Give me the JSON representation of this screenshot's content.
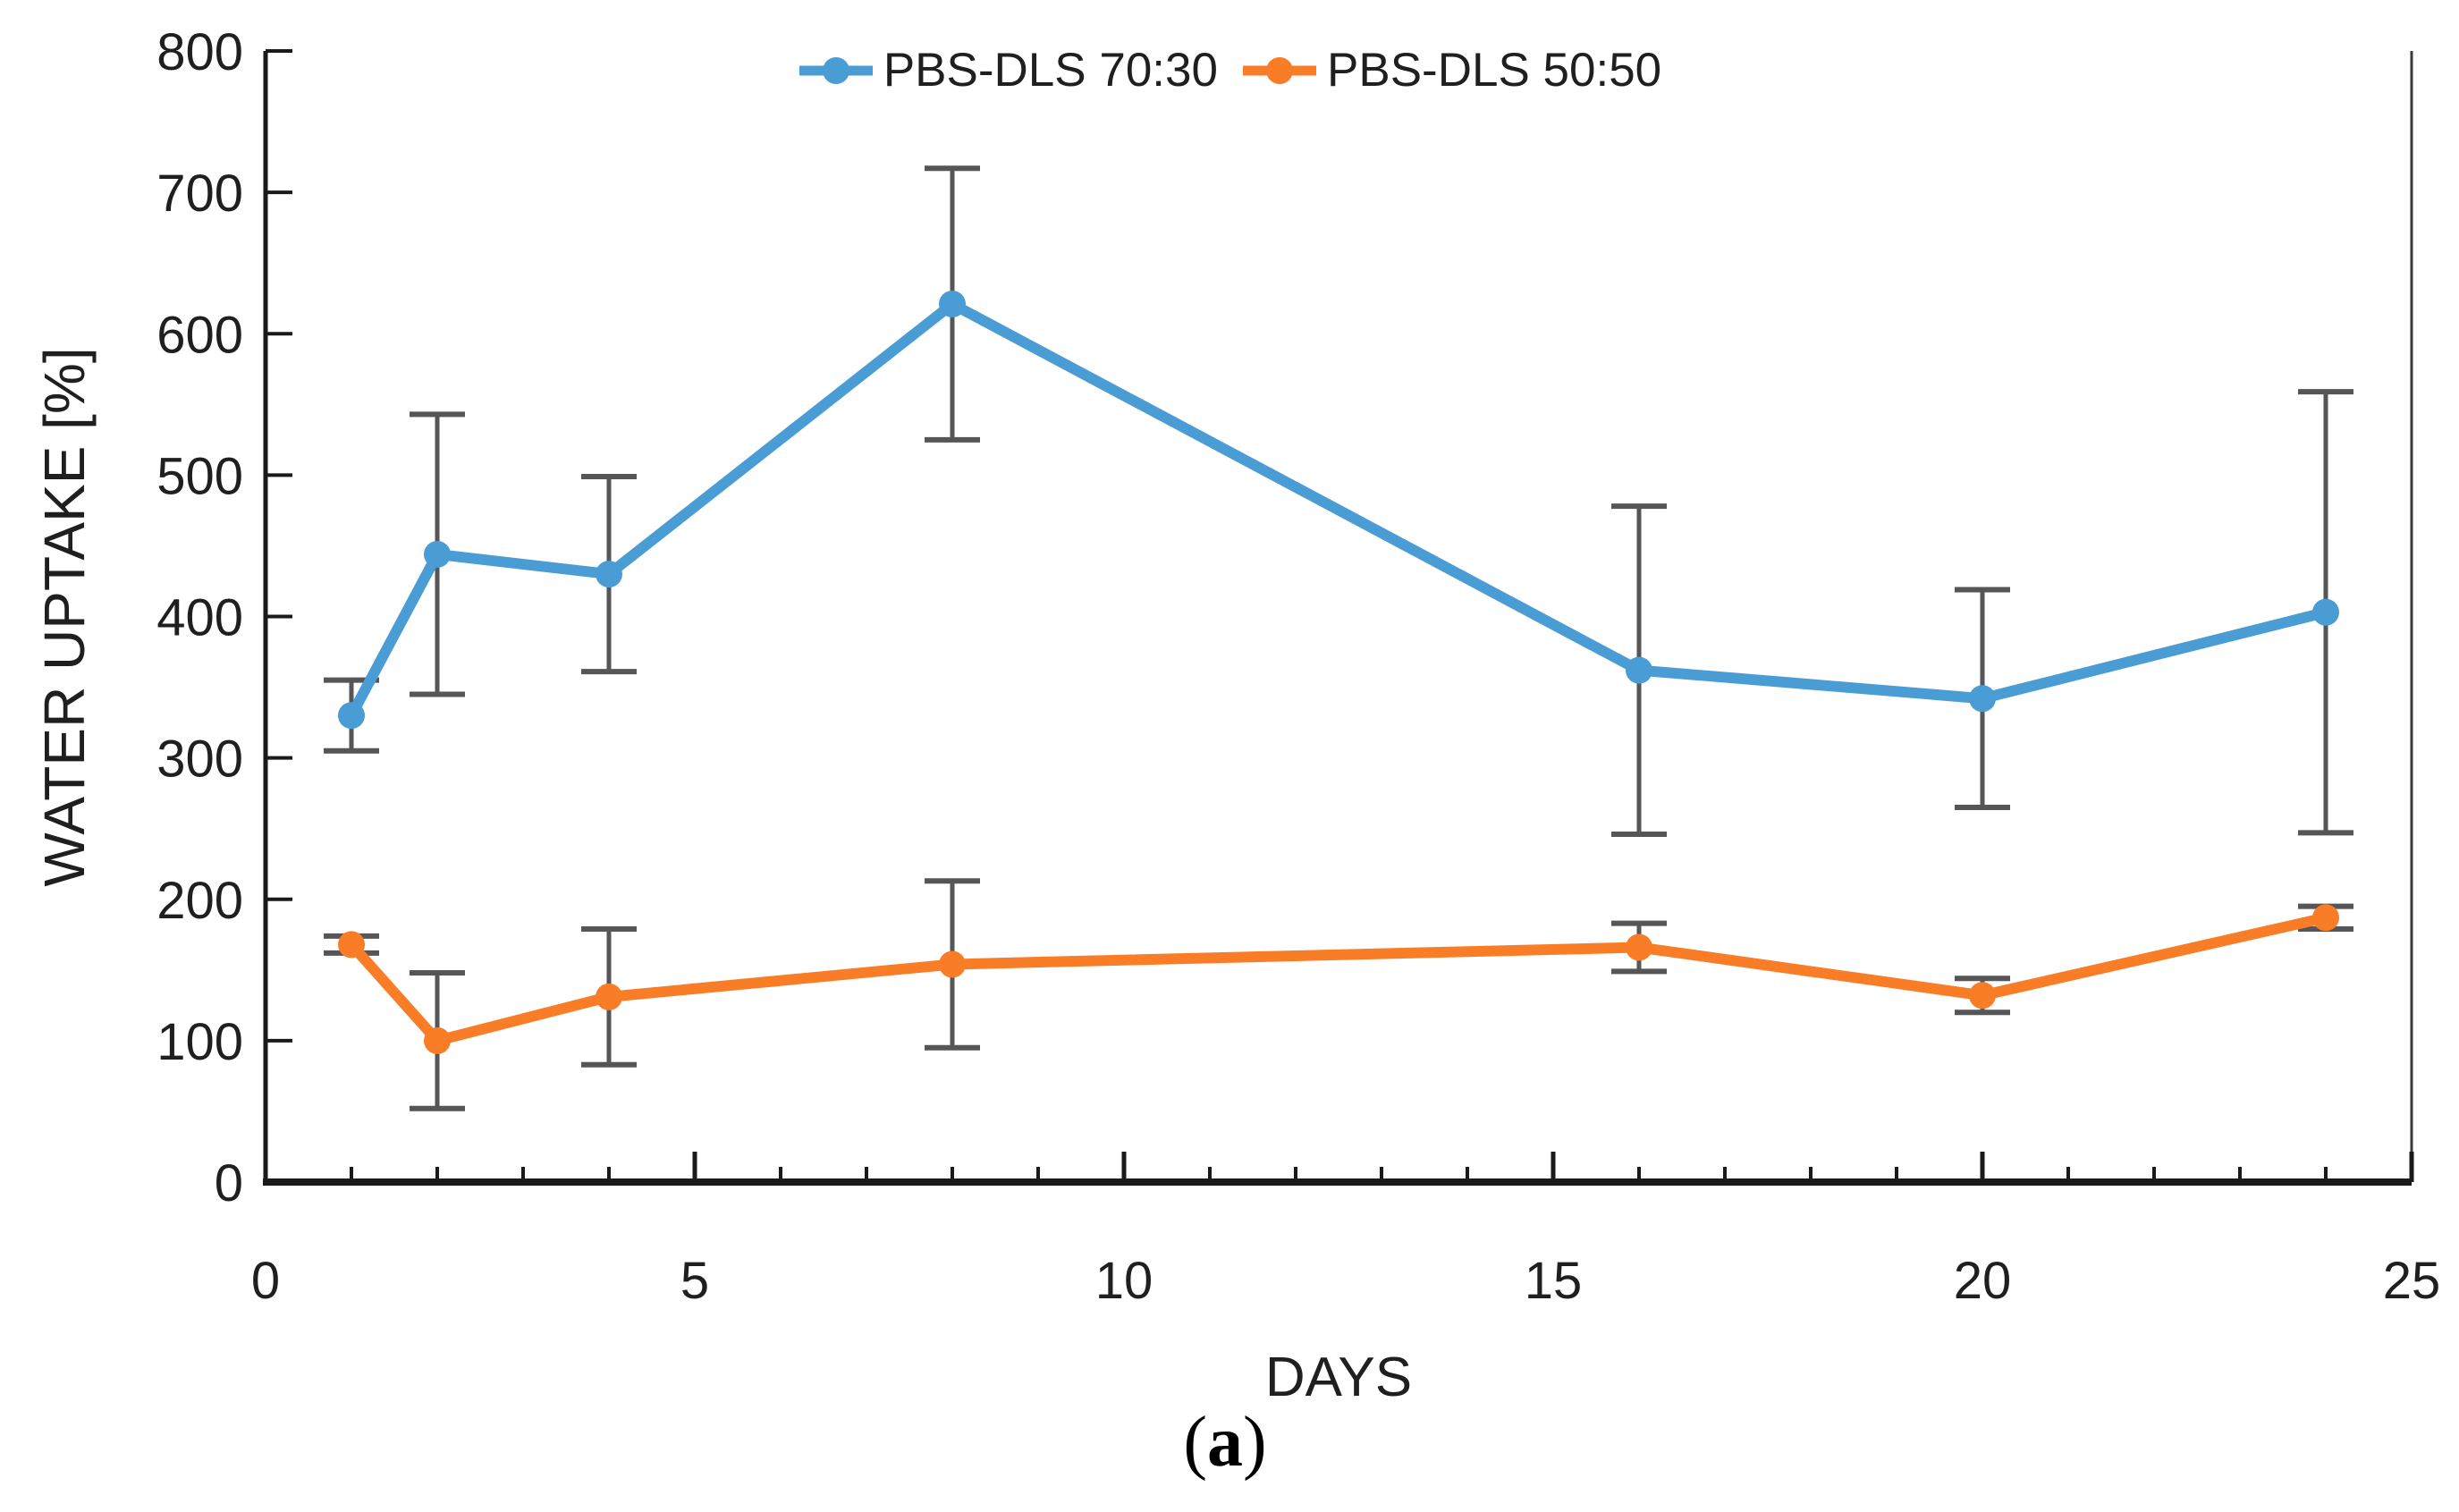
{
  "figure": {
    "background": "#ffffff",
    "caption": {
      "prefix": "(",
      "letter": "a",
      "suffix": ")"
    }
  },
  "chart_data": {
    "type": "line",
    "title": "",
    "xlabel": "DAYS",
    "ylabel": "WATER UPTAKE [%]",
    "xlim": [
      0,
      25
    ],
    "ylim": [
      0,
      800
    ],
    "xticks_major": [
      0,
      5,
      10,
      15,
      20,
      25
    ],
    "xtick_minor_step": 1,
    "yticks": [
      0,
      100,
      200,
      300,
      400,
      500,
      600,
      700,
      800
    ],
    "grid": false,
    "legend_position": "top-center",
    "axis_color": "#1a1a1a",
    "right_spine_color": "#3a3a3a",
    "error_bar_color": "#565656",
    "tick_label_color": "#1f1f1f",
    "series": [
      {
        "name": "PBS-DLS 70:30",
        "color": "#4A9CD5",
        "x": [
          1,
          2,
          4,
          8,
          16,
          20,
          24
        ],
        "y": [
          330,
          444,
          430,
          621,
          362,
          342,
          403
        ],
        "yerr": [
          25,
          99,
          69,
          96,
          116,
          77,
          156
        ]
      },
      {
        "name": "PBS-DLS 50:50",
        "color": "#F97C26",
        "x": [
          1,
          2,
          4,
          8,
          16,
          20,
          24
        ],
        "y": [
          168,
          100,
          131,
          154,
          166,
          132,
          187
        ],
        "yerr": [
          6,
          48,
          48,
          59,
          17,
          12,
          8
        ]
      }
    ]
  }
}
